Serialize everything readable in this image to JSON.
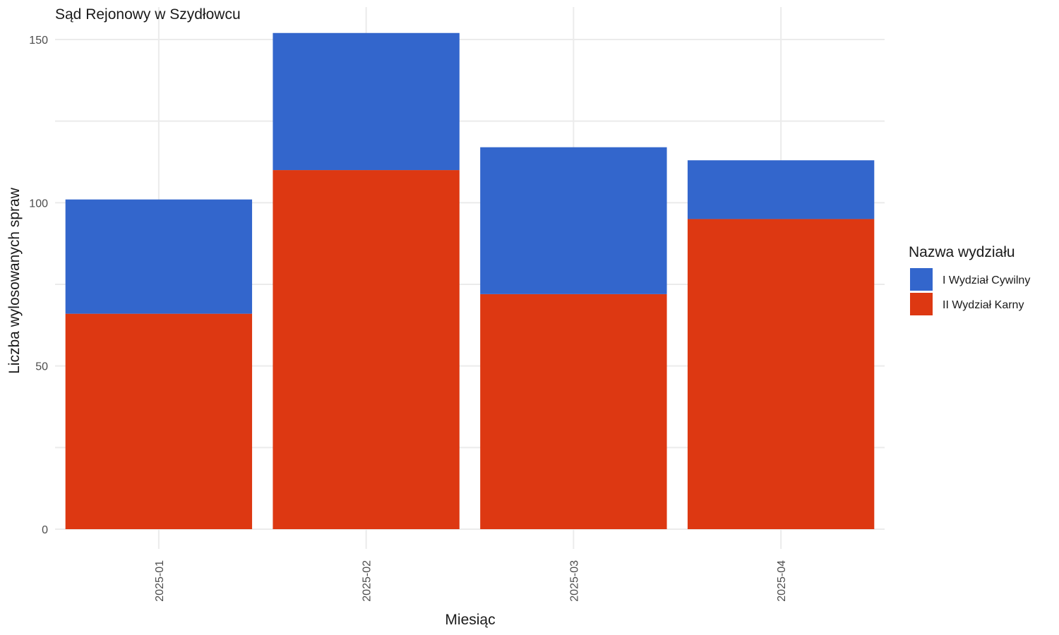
{
  "chart_data": {
    "type": "bar",
    "stacked": true,
    "title": "Sąd Rejonowy w Szydłowcu",
    "xlabel": "Miesiąc",
    "ylabel": "Liczba wylosowanych spraw",
    "categories": [
      "2025-01",
      "2025-02",
      "2025-03",
      "2025-04"
    ],
    "ylim": [
      0,
      160
    ],
    "yticks": [
      0,
      50,
      100,
      150
    ],
    "series": [
      {
        "name": "II Wydział Karny",
        "color": "#dd3812",
        "values": [
          66,
          110,
          72,
          95
        ]
      },
      {
        "name": "I Wydział Cywilny",
        "color": "#3366cc",
        "values": [
          35,
          42,
          45,
          18
        ]
      }
    ],
    "legend": {
      "title": "Nazwa wydziału",
      "position": "right",
      "entries": [
        {
          "label": "I Wydział Cywilny",
          "color": "#3366cc"
        },
        {
          "label": "II Wydział Karny",
          "color": "#dd3812"
        }
      ]
    },
    "grid": true
  }
}
